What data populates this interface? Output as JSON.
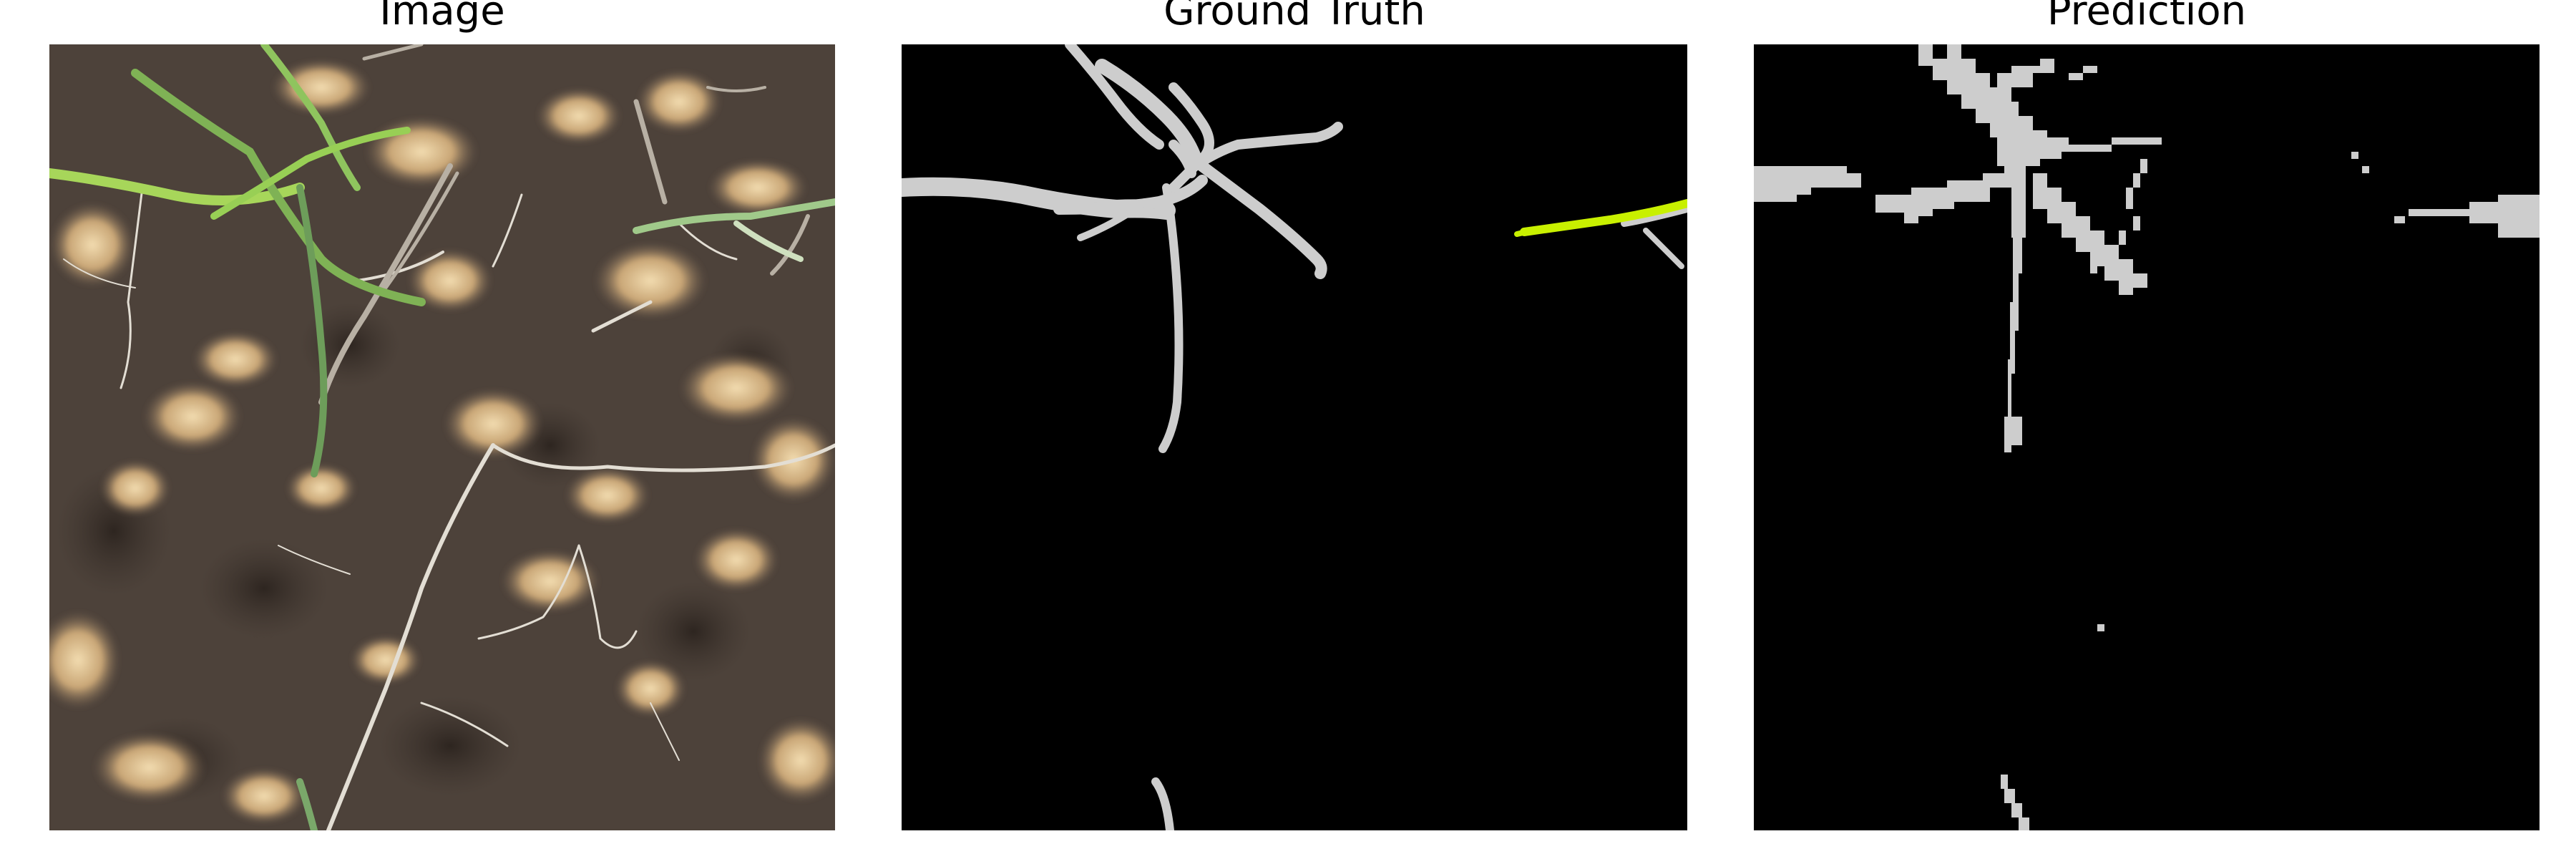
{
  "panels": [
    {
      "key": "image",
      "title": "Image"
    },
    {
      "key": "ground_truth",
      "title": "Ground Truth"
    },
    {
      "key": "prediction",
      "title": "Prediction"
    }
  ],
  "colors": {
    "background": "#ffffff",
    "mask_background": "#000000",
    "root_mask": "#cdcdcd",
    "shoot_mask": "#c8f000",
    "soil_dark": "#4a3f38",
    "soil_light": "#d9b98a",
    "leaf_green": "#8ec24a",
    "root_white": "#e8e4dc"
  }
}
